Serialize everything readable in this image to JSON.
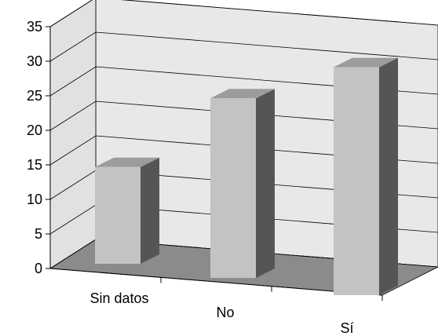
{
  "chart_data": {
    "type": "bar",
    "categories": [
      "Sin datos",
      "No",
      "Sí"
    ],
    "values": [
      14,
      26,
      33
    ],
    "ylim": [
      0,
      35
    ],
    "yticks": [
      "0",
      "5",
      "10",
      "15",
      "20",
      "25",
      "30",
      "35"
    ],
    "grid": true,
    "style": "3d",
    "colors": {
      "bar_front": "#c3c3c3",
      "bar_top": "#9c9c9c",
      "bar_side": "#555555",
      "floor": "#8b8b8b",
      "back_wall": "#e8e8e8",
      "side_wall": "#e1e1e1",
      "gridline": "#000000"
    }
  }
}
